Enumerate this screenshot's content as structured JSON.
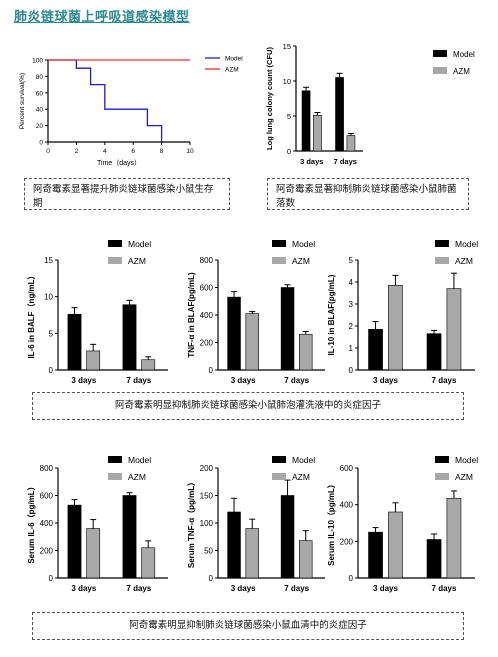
{
  "page_title": "肺炎链球菌上呼吸道感染模型",
  "captions": {
    "survival": "阿奇霉素显著提升肺炎链球菌感染小鼠生存期",
    "cfu": "阿奇霉素显著抑制肺炎链球菌感染小鼠肺菌落数",
    "balf": "阿奇霉素明显抑制肺炎链球菌感染小鼠肺泡灌洗液中的炎症因子",
    "serum": "阿奇霉素明显抑制肺炎链球菌感染小鼠血清中的炎症因子"
  },
  "colors": {
    "model": "#000000",
    "azm": "#a8a8a8",
    "survival_model": "#1d1dcc",
    "survival_azm": "#e53030"
  },
  "chart_data": [
    {
      "id": "survival",
      "type": "line",
      "xlabel": "Time（days）",
      "ylabel": "Percent survival(%)",
      "xlim": [
        0,
        10
      ],
      "ylim": [
        0,
        100
      ],
      "xticks": [
        0,
        2,
        4,
        6,
        8,
        10
      ],
      "yticks": [
        0,
        20,
        40,
        60,
        80,
        100
      ],
      "legend_position": "top-right",
      "series": [
        {
          "name": "Model",
          "color": "#1d1dcc",
          "x": [
            0,
            2,
            2,
            3,
            3,
            4,
            4,
            7,
            7,
            8,
            8
          ],
          "y": [
            100,
            100,
            90,
            90,
            70,
            70,
            40,
            40,
            20,
            20,
            0
          ]
        },
        {
          "name": "AZM",
          "color": "#e53030",
          "x": [
            0,
            10
          ],
          "y": [
            100,
            100
          ]
        }
      ]
    },
    {
      "id": "cfu",
      "type": "bar",
      "ylabel": "Log lung colony count (CFU)",
      "ylim": [
        0,
        15
      ],
      "yticks": [
        0,
        5,
        10,
        15
      ],
      "categories": [
        "3 days",
        "7 days"
      ],
      "legend_position": "top-right",
      "series": [
        {
          "name": "Model",
          "values": [
            8.6,
            10.5
          ],
          "errors": [
            0.5,
            0.6
          ]
        },
        {
          "name": "AZM",
          "values": [
            5.1,
            2.2
          ],
          "errors": [
            0.4,
            0.3
          ]
        }
      ]
    },
    {
      "id": "balf_il6",
      "type": "bar",
      "ylabel": "IL-6 in BALF（ng/mL）",
      "ylim": [
        0,
        15
      ],
      "yticks": [
        0,
        5,
        10,
        15
      ],
      "categories": [
        "3 days",
        "7 days"
      ],
      "legend_position": "top-right",
      "series": [
        {
          "name": "Model",
          "values": [
            7.6,
            8.9
          ],
          "errors": [
            0.9,
            0.6
          ]
        },
        {
          "name": "AZM",
          "values": [
            2.6,
            1.4
          ],
          "errors": [
            0.9,
            0.4
          ]
        }
      ]
    },
    {
      "id": "balf_tnf",
      "type": "bar",
      "ylabel": "TNF-α in BLAF(pg/mL)",
      "ylim": [
        0,
        800
      ],
      "yticks": [
        0,
        200,
        400,
        600,
        800
      ],
      "categories": [
        "3 days",
        "7 days"
      ],
      "legend_position": "top-right",
      "series": [
        {
          "name": "Model",
          "values": [
            530,
            600
          ],
          "errors": [
            40,
            20
          ]
        },
        {
          "name": "AZM",
          "values": [
            410,
            260
          ],
          "errors": [
            15,
            20
          ]
        }
      ]
    },
    {
      "id": "balf_il10",
      "type": "bar",
      "ylabel": "IL-10 in BLAF(pg/mL)",
      "ylim": [
        0,
        5
      ],
      "yticks": [
        0,
        1,
        2,
        3,
        4,
        5
      ],
      "categories": [
        "3 days",
        "7 days"
      ],
      "legend_position": "top-right",
      "series": [
        {
          "name": "Model",
          "values": [
            1.85,
            1.65
          ],
          "errors": [
            0.35,
            0.15
          ]
        },
        {
          "name": "AZM",
          "values": [
            3.85,
            3.7
          ],
          "errors": [
            0.45,
            0.7
          ]
        }
      ]
    },
    {
      "id": "serum_il6",
      "type": "bar",
      "ylabel": "Serum IL-6（pg/mL）",
      "ylim": [
        0,
        800
      ],
      "yticks": [
        0,
        200,
        400,
        600,
        800
      ],
      "categories": [
        "3 days",
        "7 days"
      ],
      "legend_position": "top-right",
      "series": [
        {
          "name": "Model",
          "values": [
            530,
            600
          ],
          "errors": [
            40,
            20
          ]
        },
        {
          "name": "AZM",
          "values": [
            360,
            220
          ],
          "errors": [
            65,
            50
          ]
        }
      ]
    },
    {
      "id": "serum_tnf",
      "type": "bar",
      "ylabel": "Serum TNF-α（pg/mL）",
      "ylim": [
        0,
        200
      ],
      "yticks": [
        0,
        50,
        100,
        150,
        200
      ],
      "categories": [
        "3 days",
        "7 days"
      ],
      "legend_position": "top-right",
      "series": [
        {
          "name": "Model",
          "values": [
            120,
            150
          ],
          "errors": [
            25,
            28
          ]
        },
        {
          "name": "AZM",
          "values": [
            90,
            68
          ],
          "errors": [
            17,
            18
          ]
        }
      ]
    },
    {
      "id": "serum_il10",
      "type": "bar",
      "ylabel": "Serum IL-10（pg/mL）",
      "ylim": [
        0,
        600
      ],
      "yticks": [
        0,
        200,
        400,
        600
      ],
      "categories": [
        "3 days",
        "7 days"
      ],
      "legend_position": "top-right",
      "series": [
        {
          "name": "Model",
          "values": [
            250,
            210
          ],
          "errors": [
            25,
            30
          ]
        },
        {
          "name": "AZM",
          "values": [
            360,
            435
          ],
          "errors": [
            50,
            40
          ]
        }
      ]
    }
  ]
}
